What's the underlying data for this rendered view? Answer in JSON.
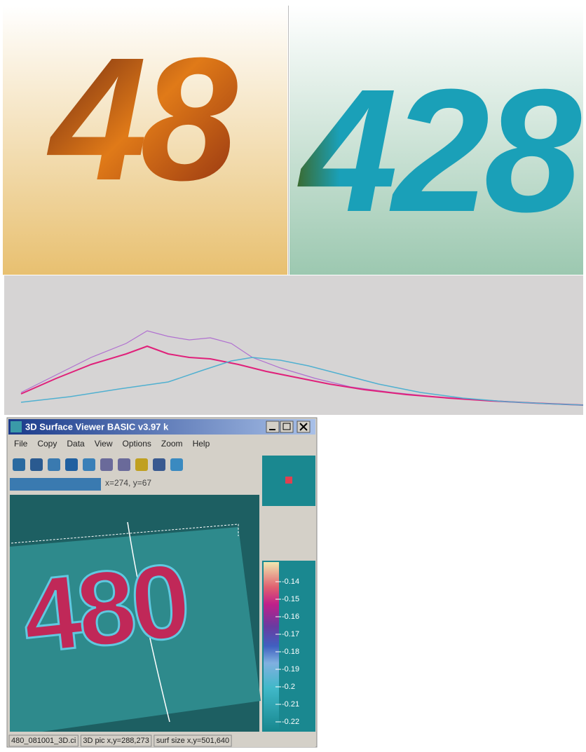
{
  "panels": [
    {
      "digits": "48"
    },
    {
      "digits": "428"
    }
  ],
  "window": {
    "title": "3D Surface Viewer BASIC v3.97 k",
    "menu": [
      "File",
      "Copy",
      "Data",
      "View",
      "Options",
      "Zoom",
      "Help"
    ],
    "cursor_text": "x=274, y=67",
    "surface_digits": "480",
    "colorbar_labels": [
      "-0.14",
      "-0.15",
      "-0.16",
      "-0.17",
      "-0.18",
      "-0.19",
      "-0.2",
      "-0.21",
      "-0.22"
    ],
    "status": [
      "480_081001_3D.ci",
      "3D pic x,y=288,273",
      "surf size x,y=501,640"
    ]
  }
}
